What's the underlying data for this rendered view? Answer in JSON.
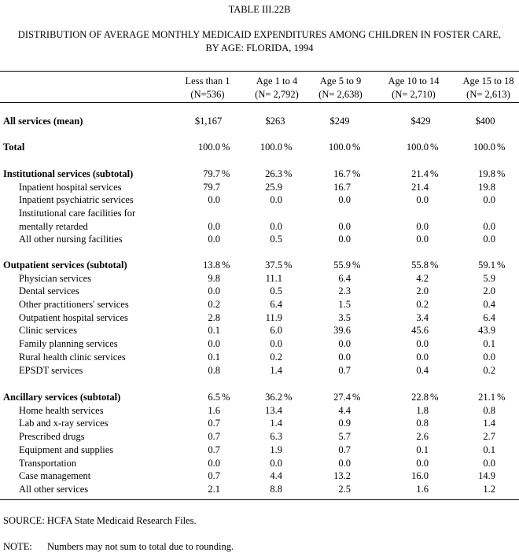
{
  "title": "TABLE III.22B",
  "subtitle_line1": "DISTRIBUTION OF AVERAGE MONTHLY MEDICAID EXPENDITURES AMONG CHILDREN IN FOSTER CARE,",
  "subtitle_line2": "BY AGE: FLORIDA, 1994",
  "columns": [
    {
      "label": "Less than 1",
      "n": "(N=536)"
    },
    {
      "label": "Age 1 to 4",
      "n": "(N= 2,792)"
    },
    {
      "label": "Age 5 to 9",
      "n": "(N= 2,638)"
    },
    {
      "label": "Age 10 to 14",
      "n": "(N= 2,710)"
    },
    {
      "label": "Age 15 to 18",
      "n": "(N= 2,613)"
    }
  ],
  "mean_row": {
    "label": "All services (mean)",
    "values": [
      "$1,167",
      "$263",
      "$249",
      "$429",
      "$400"
    ]
  },
  "total_row": {
    "label": "Total",
    "values": [
      "100.0",
      "100.0",
      "100.0",
      "100.0",
      "100.0"
    ],
    "unit": "%"
  },
  "sections": [
    {
      "label": "Institutional services (subtotal)",
      "values": [
        "79.7",
        "26.3",
        "16.7",
        "21.4",
        "19.8"
      ],
      "rows": [
        {
          "label": "Inpatient hospital services",
          "values": [
            "79.7",
            "25.9",
            "16.7",
            "21.4",
            "19.8"
          ]
        },
        {
          "label": "Inpatient psychiatric services",
          "values": [
            "0.0",
            "0.0",
            "0.0",
            "0.0",
            "0.0"
          ]
        },
        {
          "label": "Institutional care facilities for",
          "values": []
        },
        {
          "label": "mentally retarded",
          "values": [
            "0.0",
            "0.0",
            "0.0",
            "0.0",
            "0.0"
          ]
        },
        {
          "label": "All other nursing facilities",
          "values": [
            "0.0",
            "0.5",
            "0.0",
            "0.0",
            "0.0"
          ]
        }
      ]
    },
    {
      "label": "Outpatient services (subtotal)",
      "values": [
        "13.8",
        "37.5",
        "55.9",
        "55.8",
        "59.1"
      ],
      "rows": [
        {
          "label": "Physician services",
          "values": [
            "9.8",
            "11.1",
            "6.4",
            "4.2",
            "5.9"
          ]
        },
        {
          "label": "Dental services",
          "values": [
            "0.0",
            "0.5",
            "2.3",
            "2.0",
            "2.0"
          ]
        },
        {
          "label": "Other practitioners' services",
          "values": [
            "0.2",
            "6.4",
            "1.5",
            "0.2",
            "0.4"
          ]
        },
        {
          "label": "Outpatient hospital services",
          "values": [
            "2.8",
            "11.9",
            "3.5",
            "3.4",
            "6.4"
          ]
        },
        {
          "label": "Clinic services",
          "values": [
            "0.1",
            "6.0",
            "39.6",
            "45.6",
            "43.9"
          ]
        },
        {
          "label": "Family planning services",
          "values": [
            "0.0",
            "0.0",
            "0.0",
            "0.0",
            "0.1"
          ]
        },
        {
          "label": "Rural health clinic services",
          "values": [
            "0.1",
            "0.2",
            "0.0",
            "0.0",
            "0.0"
          ]
        },
        {
          "label": "EPSDT services",
          "values": [
            "0.8",
            "1.4",
            "0.7",
            "0.4",
            "0.2"
          ]
        }
      ]
    },
    {
      "label": "Ancillary services (subtotal)",
      "values": [
        "6.5",
        "36.2",
        "27.4",
        "22.8",
        "21.1"
      ],
      "rows": [
        {
          "label": "Home health services",
          "values": [
            "1.6",
            "13.4",
            "4.4",
            "1.8",
            "0.8"
          ]
        },
        {
          "label": "Lab and x-ray services",
          "values": [
            "0.7",
            "1.4",
            "0.9",
            "0.8",
            "1.4"
          ]
        },
        {
          "label": "Prescribed drugs",
          "values": [
            "0.7",
            "6.3",
            "5.7",
            "2.6",
            "2.7"
          ]
        },
        {
          "label": "Equipment and supplies",
          "values": [
            "0.7",
            "1.9",
            "0.7",
            "0.1",
            "0.1"
          ]
        },
        {
          "label": "Transportation",
          "values": [
            "0.0",
            "0.0",
            "0.0",
            "0.0",
            "0.0"
          ]
        },
        {
          "label": "Case management",
          "values": [
            "0.7",
            "4.4",
            "13.2",
            "16.0",
            "14.9"
          ]
        },
        {
          "label": "All other services",
          "values": [
            "2.1",
            "8.8",
            "2.5",
            "1.6",
            "1.2"
          ]
        }
      ]
    }
  ],
  "source": "SOURCE:  HCFA State Medicaid Research Files.",
  "note_label": "NOTE:",
  "note_text": "Numbers may not sum to total due to rounding."
}
